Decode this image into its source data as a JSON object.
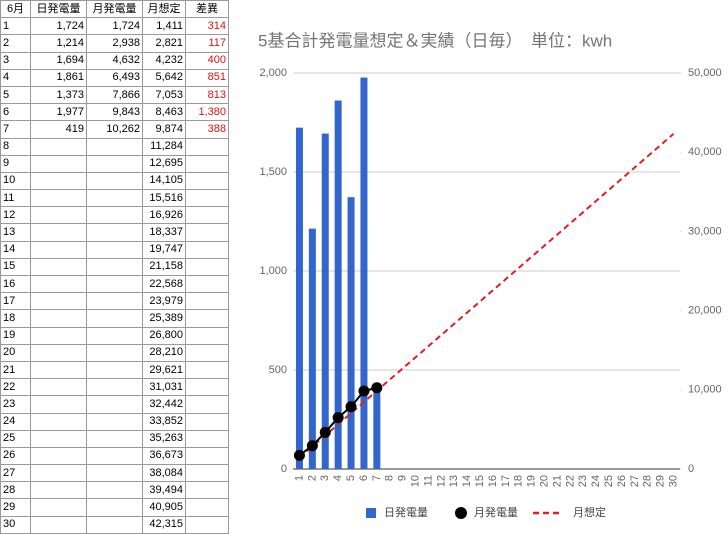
{
  "table": {
    "header": [
      "6月",
      "日発電量",
      "月発電量",
      "月想定",
      "差異"
    ],
    "rows": [
      [
        "1",
        "1,724",
        "1,724",
        "1,411",
        "314"
      ],
      [
        "2",
        "1,214",
        "2,938",
        "2,821",
        "117"
      ],
      [
        "3",
        "1,694",
        "4,632",
        "4,232",
        "400"
      ],
      [
        "4",
        "1,861",
        "6,493",
        "5,642",
        "851"
      ],
      [
        "5",
        "1,373",
        "7,866",
        "7,053",
        "813"
      ],
      [
        "6",
        "1,977",
        "9,843",
        "8,463",
        "1,380"
      ],
      [
        "7",
        "419",
        "10,262",
        "9,874",
        "388"
      ],
      [
        "8",
        null,
        null,
        "11,284",
        null
      ],
      [
        "9",
        null,
        null,
        "12,695",
        null
      ],
      [
        "10",
        null,
        null,
        "14,105",
        null
      ],
      [
        "11",
        null,
        null,
        "15,516",
        null
      ],
      [
        "12",
        null,
        null,
        "16,926",
        null
      ],
      [
        "13",
        null,
        null,
        "18,337",
        null
      ],
      [
        "14",
        null,
        null,
        "19,747",
        null
      ],
      [
        "15",
        null,
        null,
        "21,158",
        null
      ],
      [
        "16",
        null,
        null,
        "22,568",
        null
      ],
      [
        "17",
        null,
        null,
        "23,979",
        null
      ],
      [
        "18",
        null,
        null,
        "25,389",
        null
      ],
      [
        "19",
        null,
        null,
        "26,800",
        null
      ],
      [
        "20",
        null,
        null,
        "28,210",
        null
      ],
      [
        "21",
        null,
        null,
        "29,621",
        null
      ],
      [
        "22",
        null,
        null,
        "31,031",
        null
      ],
      [
        "23",
        null,
        null,
        "32,442",
        null
      ],
      [
        "24",
        null,
        null,
        "33,852",
        null
      ],
      [
        "25",
        null,
        null,
        "35,263",
        null
      ],
      [
        "26",
        null,
        null,
        "36,673",
        null
      ],
      [
        "27",
        null,
        null,
        "38,084",
        null
      ],
      [
        "28",
        null,
        null,
        "39,494",
        null
      ],
      [
        "29",
        null,
        null,
        "40,905",
        null
      ],
      [
        "30",
        null,
        null,
        "42,315",
        null
      ]
    ]
  },
  "chart_data": {
    "type": "bar",
    "title": "5基合計発電量想定＆実績（日毎）　単位：kwh",
    "categories": [
      "1",
      "2",
      "3",
      "4",
      "5",
      "6",
      "7",
      "8",
      "9",
      "10",
      "11",
      "12",
      "13",
      "14",
      "15",
      "16",
      "17",
      "18",
      "19",
      "20",
      "21",
      "22",
      "23",
      "24",
      "25",
      "26",
      "27",
      "28",
      "29",
      "30"
    ],
    "series": [
      {
        "name": "日発電量",
        "type": "bar",
        "color": "#3366cc",
        "values": [
          1724,
          1214,
          1694,
          1861,
          1373,
          1977,
          419,
          null,
          null,
          null,
          null,
          null,
          null,
          null,
          null,
          null,
          null,
          null,
          null,
          null,
          null,
          null,
          null,
          null,
          null,
          null,
          null,
          null,
          null,
          null
        ]
      },
      {
        "name": "月発電量",
        "type": "line",
        "axis": "y2",
        "color": "#000000",
        "values": [
          1724,
          2938,
          4632,
          6493,
          7866,
          9843,
          10262,
          null,
          null,
          null,
          null,
          null,
          null,
          null,
          null,
          null,
          null,
          null,
          null,
          null,
          null,
          null,
          null,
          null,
          null,
          null,
          null,
          null,
          null,
          null
        ]
      },
      {
        "name": "月想定",
        "type": "dashed-line",
        "axis": "y2",
        "color": "#e02020",
        "values": [
          1411,
          2821,
          4232,
          5642,
          7053,
          8463,
          9874,
          11284,
          12695,
          14105,
          15516,
          16926,
          18337,
          19747,
          21158,
          22568,
          23979,
          25389,
          26800,
          28210,
          29621,
          31031,
          32442,
          33852,
          35263,
          36673,
          38084,
          39494,
          40905,
          42315
        ]
      }
    ],
    "ylim": [
      0,
      2000
    ],
    "yticks": [
      0,
      500,
      {
        "value": 1000,
        "label": "1,000"
      },
      {
        "value": 1500,
        "label": "1,500"
      },
      {
        "value": 2000,
        "label": "2,000"
      }
    ],
    "y2lim": [
      0,
      50000
    ],
    "y2ticks": [
      0,
      {
        "value": 10000,
        "label": "10,000"
      },
      {
        "value": 20000,
        "label": "20,000"
      },
      {
        "value": 30000,
        "label": "30,000"
      },
      {
        "value": 40000,
        "label": "40,000"
      },
      {
        "value": 50000,
        "label": "50,000"
      }
    ],
    "grid": true,
    "legend": "bottom"
  }
}
